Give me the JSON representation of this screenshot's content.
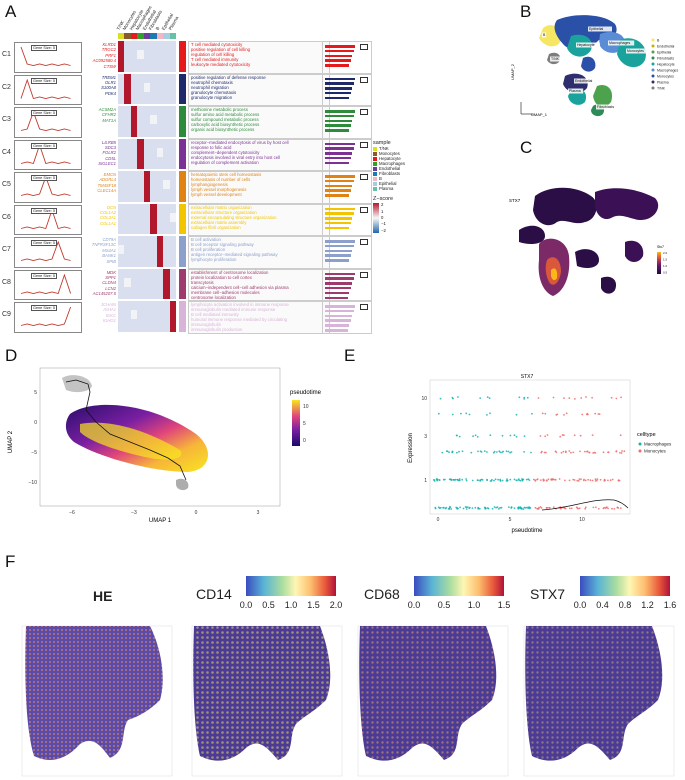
{
  "panels": {
    "a": "A",
    "b": "B",
    "c": "C",
    "d": "D",
    "e": "E",
    "f": "F"
  },
  "panel_a": {
    "columns": [
      "T/NK",
      "Monocytes",
      "Hepatocyte",
      "Macrophages",
      "Endothelial",
      "Fibroblasts",
      "B",
      "Epithelial",
      "Plasma"
    ],
    "column_colors": [
      "#d9e021",
      "#8b5a2b",
      "#e41a1c",
      "#33a02c",
      "#6a3d9a",
      "#1f78b4",
      "#f4b6c2",
      "#a6cee3",
      "#66c2a5"
    ],
    "line_badge": "Gene Size: 5",
    "clusters": [
      {
        "id": "C1",
        "color": "#e41a1c",
        "genes": [
          "KLRD1",
          "TRGC2",
          "PRF1",
          "AC092580.4",
          "CTSW"
        ],
        "terms": [
          "T cell mediated cytotoxicity",
          "positive regulation of cell killing",
          "regulation of cell killing",
          "T cell mediated immunity",
          "leukocyte mediated cytotoxicity"
        ]
      },
      {
        "id": "C2",
        "color": "#1f2a6b",
        "genes": [
          "TREM1",
          "OLR1",
          "S100A8",
          "PDK4"
        ],
        "terms": [
          "positive regulation of defense response",
          "neutrophil chemotaxis",
          "neutrophil migration",
          "granulocyte chemotaxis",
          "granulocyte migration"
        ]
      },
      {
        "id": "C3",
        "color": "#2e8b3c",
        "genes": [
          "ACSM2A",
          "CFHR2",
          "MAT1A"
        ],
        "terms": [
          "methionine metabolic process",
          "sulfur amino acid metabolic process",
          "sulfur compound metabolic process",
          "carboxylic acid biosynthetic process",
          "organic acid biosynthetic process"
        ]
      },
      {
        "id": "C4",
        "color": "#7b3294",
        "genes": [
          "LILRB5",
          "SDC3",
          "FOLR2",
          "CD5L",
          "SIGLEC1"
        ],
        "terms": [
          "receptor−mediated endocytosis of virus by host cell",
          "response to folic acid",
          "complement−dependent cytotoxicity",
          "endocytosis involved in viral entry into host cell",
          "regulation of complement activation"
        ]
      },
      {
        "id": "C5",
        "color": "#e08214",
        "genes": [
          "EMCN",
          "ADGRL4",
          "TM4SF18",
          "CLEC14A"
        ],
        "terms": [
          "hematopoietic stem cell homeostasis",
          "homeostasis of number of cells",
          "lymphangiogenesis",
          "lymph vessel morphogenesis",
          "lymph vessel development"
        ]
      },
      {
        "id": "C6",
        "color": "#f2c500",
        "genes": [
          "DCN",
          "COL1A2",
          "COL3A1",
          "COL1A1"
        ],
        "terms": [
          "extracellular matrix organization",
          "extracellular structure organization",
          "external encapsulating structure organization",
          "extracellular matrix assembly",
          "collagen fibril organization"
        ]
      },
      {
        "id": "C7",
        "color": "#8da0cb",
        "genes": [
          "CD79A",
          "TNFRSF13C",
          "MS4A1",
          "BANK1",
          "SPIB"
        ],
        "terms": [
          "B cell activation",
          "B cell receptor signaling pathway",
          "B cell proliferation",
          "antigen receptor−mediated signaling pathway",
          "lymphocyte proliferation"
        ]
      },
      {
        "id": "C8",
        "color": "#9e3a6e",
        "genes": [
          "MDK",
          "SPP1",
          "CLDN4",
          "LCN2",
          "AC145207.5"
        ],
        "terms": [
          "establishment of centrosome localization",
          "protein localization to cell cortex",
          "transcytosis",
          "calcium−independent cell−cell adhesion via plasma",
          "membrane cell−adhesion molecules",
          "centrosome localization"
        ]
      },
      {
        "id": "C9",
        "color": "#d8b4d8",
        "genes": [
          "JCHAIN",
          "IGHA1",
          "IGKC",
          "IGHG1"
        ],
        "terms": [
          "lymphocyte activation involved in immune response",
          "immunoglobulin mediated immune response",
          "B cell mediated immunity",
          "humoral immune response mediated by circulating",
          "immunoglobulin",
          "immunoglobulin production"
        ]
      }
    ],
    "legend_sample_title": "sample",
    "legend_samples": [
      "T/NK",
      "Monocytes",
      "Hepatocyte",
      "Macrophages",
      "Endothelial",
      "Fibroblasts",
      "B",
      "Epithelial",
      "Plasma"
    ],
    "legend_z_title": "Z−score",
    "legend_z_ticks": [
      "2",
      "1",
      "0",
      "−1",
      "−2"
    ]
  },
  "panel_b": {
    "ylabel": "UMAP_2",
    "xlabel": "UMAP_1",
    "legend": [
      {
        "name": "B",
        "color": "#f5e663"
      },
      {
        "name": "Endothelial",
        "color": "#c2b200"
      },
      {
        "name": "Epithelial",
        "color": "#4da34d"
      },
      {
        "name": "Fibroblasts",
        "color": "#2e8b57"
      },
      {
        "name": "Hepatocyte",
        "color": "#1aa39c"
      },
      {
        "name": "Macrophages",
        "color": "#5b8dd6"
      },
      {
        "name": "Monocytes",
        "color": "#2b50a8"
      },
      {
        "name": "Plasma",
        "color": "#2e2e6e"
      },
      {
        "name": "T/NK",
        "color": "#7d7d7d"
      }
    ],
    "clusters": [
      "B",
      "Epithelial",
      "Hepatocyte",
      "Macrophages",
      "Monocytes",
      "Endothelial",
      "T/NK",
      "Fibroblasts",
      "Plasma"
    ]
  },
  "panel_c": {
    "gene": "STX7",
    "legend_title": "Stx7",
    "ticks": [
      "2.0",
      "1.5",
      "1.0",
      "0.5"
    ]
  },
  "panel_d": {
    "xlabel": "UMAP 1",
    "ylabel": "UMAP 2",
    "legend_title": "pseudotime",
    "legend_ticks": [
      "10",
      "5",
      "0"
    ],
    "xticks": [
      "−6",
      "−3",
      "0",
      "3"
    ],
    "yticks": [
      "5",
      "0",
      "−5",
      "−10"
    ]
  },
  "panel_e": {
    "title": "STX7",
    "xlabel": "pseudotime",
    "ylabel": "Expression",
    "xticks": [
      "0",
      "5",
      "10"
    ],
    "yticks": [
      "10",
      "3",
      "1"
    ],
    "legend_title": "celltype",
    "legend": [
      {
        "name": "Macrophages",
        "color": "#17b3b3"
      },
      {
        "name": "Monocytes",
        "color": "#f06a6a"
      }
    ]
  },
  "panel_f": {
    "he_title": "HE",
    "bars": [
      {
        "gene": "CD14",
        "ticks": [
          "0.0",
          "0.5",
          "1.0",
          "1.5",
          "2.0"
        ]
      },
      {
        "gene": "CD68",
        "ticks": [
          "0.0",
          "0.5",
          "1.0",
          "1.5"
        ]
      },
      {
        "gene": "STX7",
        "ticks": [
          "0.0",
          "0.4",
          "0.8",
          "1.2",
          "1.6"
        ]
      }
    ]
  }
}
